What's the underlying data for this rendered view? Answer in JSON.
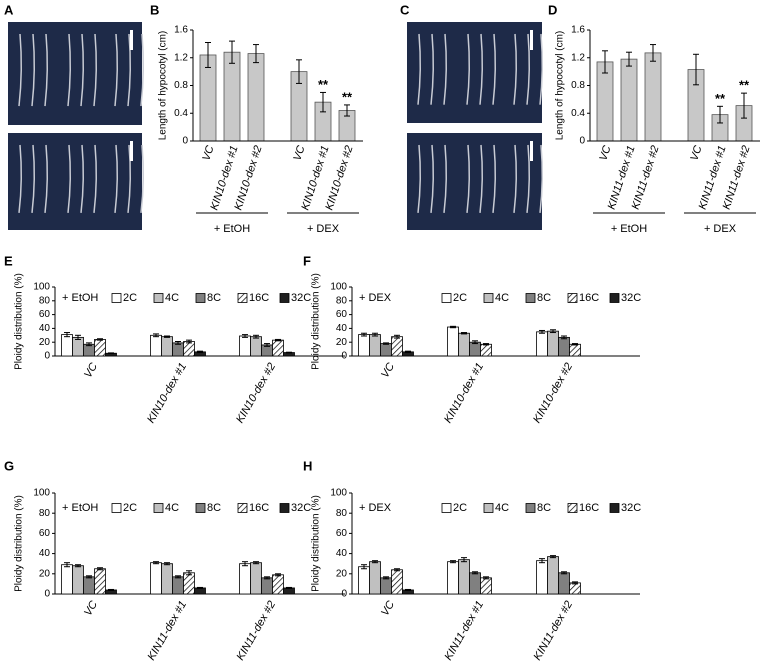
{
  "chart_data": [
    {
      "type": "image",
      "panel": "A"
    },
    {
      "type": "bar",
      "panel": "B",
      "ylabel": "Length of hypocotyl (cm)",
      "categories": [
        "VC",
        "KIN10-dex #1",
        "KIN10-dex #2",
        "VC",
        "KIN10-dex #1",
        "KIN10-dex #2"
      ],
      "values": [
        1.24,
        1.28,
        1.26,
        1.0,
        0.56,
        0.44
      ],
      "errors": [
        0.18,
        0.16,
        0.13,
        0.17,
        0.14,
        0.08
      ],
      "sig_labels": [
        null,
        null,
        null,
        null,
        "**",
        "**"
      ],
      "group_labels": [
        "+ EtOH",
        "+ DEX"
      ],
      "color": "#c8c8c8",
      "ylim": [
        0,
        1.6
      ],
      "yticks": [
        0,
        0.4,
        0.8,
        1.2,
        1.6
      ]
    },
    {
      "type": "image",
      "panel": "C"
    },
    {
      "type": "bar",
      "panel": "D",
      "ylabel": "Length of hypocotyl (cm)",
      "categories": [
        "VC",
        "KIN11-dex #1",
        "KIN11-dex #2",
        "VC",
        "KIN11-dex #1",
        "KIN11-dex #2"
      ],
      "values": [
        1.14,
        1.18,
        1.27,
        1.03,
        0.38,
        0.51
      ],
      "errors": [
        0.16,
        0.1,
        0.12,
        0.22,
        0.12,
        0.18
      ],
      "sig_labels": [
        null,
        null,
        null,
        null,
        "**",
        "**"
      ],
      "group_labels": [
        "+ EtOH",
        "+ DEX"
      ],
      "color": "#c8c8c8",
      "ylim": [
        0,
        1.6
      ],
      "yticks": [
        0,
        0.4,
        0.8,
        1.2,
        1.6
      ]
    },
    {
      "type": "grouped_bar",
      "panel": "E",
      "annotation": "+ EtOH",
      "ylabel": "Ploidy distribution (%)",
      "categories": [
        "VC",
        "KIN10-dex #1",
        "KIN10-dex #2"
      ],
      "ylim": [
        0,
        100
      ],
      "yticks": [
        0,
        20,
        40,
        60,
        80,
        100
      ],
      "series": [
        {
          "name": "2C",
          "color": "#ffffff",
          "values": [
            31,
            30,
            29
          ],
          "errors": [
            3,
            2,
            2
          ]
        },
        {
          "name": "4C",
          "color": "#c0c0c0",
          "values": [
            27,
            28,
            28
          ],
          "errors": [
            3,
            1,
            2
          ]
        },
        {
          "name": "8C",
          "color": "#808080",
          "values": [
            17,
            19,
            16
          ],
          "errors": [
            2,
            2,
            2
          ]
        },
        {
          "name": "16C",
          "color": "#ffffff",
          "hatch": true,
          "values": [
            24,
            21,
            23
          ],
          "errors": [
            1,
            2,
            1
          ]
        },
        {
          "name": "32C",
          "color": "#202020",
          "values": [
            4,
            6,
            5
          ],
          "errors": [
            0.5,
            1,
            0.5
          ]
        }
      ]
    },
    {
      "type": "grouped_bar",
      "panel": "F",
      "annotation": "+ DEX",
      "ylabel": "Ploidy distribution (%)",
      "categories": [
        "VC",
        "KIN10-dex #1",
        "KIN10-dex #2"
      ],
      "ylim": [
        0,
        100
      ],
      "yticks": [
        0,
        20,
        40,
        60,
        80,
        100
      ],
      "series": [
        {
          "name": "2C",
          "color": "#ffffff",
          "values": [
            31,
            42,
            35
          ],
          "errors": [
            2,
            1,
            2
          ]
        },
        {
          "name": "4C",
          "color": "#c0c0c0",
          "values": [
            31,
            33,
            36
          ],
          "errors": [
            2,
            1,
            2
          ]
        },
        {
          "name": "8C",
          "color": "#808080",
          "values": [
            18,
            20,
            27
          ],
          "errors": [
            1,
            2,
            2
          ]
        },
        {
          "name": "16C",
          "color": "#ffffff",
          "hatch": true,
          "values": [
            28,
            17,
            17
          ],
          "errors": [
            2,
            1,
            1
          ]
        },
        {
          "name": "32C",
          "color": "#202020",
          "values": [
            6,
            0,
            0
          ],
          "errors": [
            1,
            0,
            0
          ]
        }
      ]
    },
    {
      "type": "grouped_bar",
      "panel": "G",
      "annotation": "+ EtOH",
      "ylabel": "Ploidy distribution (%)",
      "categories": [
        "VC",
        "KIN11-dex #1",
        "KIN11-dex #2"
      ],
      "ylim": [
        0,
        100
      ],
      "yticks": [
        0,
        20,
        40,
        60,
        80,
        100
      ],
      "series": [
        {
          "name": "2C",
          "color": "#ffffff",
          "values": [
            29,
            31,
            30
          ],
          "errors": [
            2,
            1,
            2
          ]
        },
        {
          "name": "4C",
          "color": "#c0c0c0",
          "values": [
            28,
            30,
            31
          ],
          "errors": [
            1,
            1,
            1
          ]
        },
        {
          "name": "8C",
          "color": "#808080",
          "values": [
            17,
            17,
            16
          ],
          "errors": [
            1,
            1,
            1
          ]
        },
        {
          "name": "16C",
          "color": "#ffffff",
          "hatch": true,
          "values": [
            25,
            21,
            19
          ],
          "errors": [
            1,
            2,
            1
          ]
        },
        {
          "name": "32C",
          "color": "#202020",
          "values": [
            4,
            6,
            6
          ],
          "errors": [
            0.5,
            0.5,
            0.5
          ]
        }
      ]
    },
    {
      "type": "grouped_bar",
      "panel": "H",
      "annotation": "+ DEX",
      "ylabel": "Ploidy distribution (%)",
      "categories": [
        "VC",
        "KIN11-dex #1",
        "KIN11-dex #2"
      ],
      "ylim": [
        0,
        100
      ],
      "yticks": [
        0,
        20,
        40,
        60,
        80,
        100
      ],
      "series": [
        {
          "name": "2C",
          "color": "#ffffff",
          "values": [
            27,
            32,
            33
          ],
          "errors": [
            2,
            1,
            2
          ]
        },
        {
          "name": "4C",
          "color": "#c0c0c0",
          "values": [
            32,
            34,
            37
          ],
          "errors": [
            1,
            2,
            1
          ]
        },
        {
          "name": "8C",
          "color": "#808080",
          "values": [
            16,
            21,
            21
          ],
          "errors": [
            1,
            1,
            1
          ]
        },
        {
          "name": "16C",
          "color": "#ffffff",
          "hatch": true,
          "values": [
            24,
            16,
            11
          ],
          "errors": [
            1,
            1,
            1
          ]
        },
        {
          "name": "32C",
          "color": "#202020",
          "values": [
            4,
            0,
            0
          ],
          "errors": [
            0.5,
            0,
            0
          ]
        }
      ]
    }
  ]
}
